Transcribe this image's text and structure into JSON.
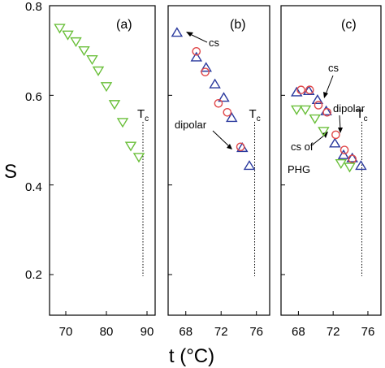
{
  "chart_data": [
    {
      "type": "scatter",
      "panel_label": "(a)",
      "xlim": [
        66,
        92
      ],
      "ylim": [
        0.2,
        0.8
      ],
      "xticks": [
        "70",
        "80",
        "90"
      ],
      "xtick_values": [
        70,
        80,
        90
      ],
      "series": [
        {
          "marker": "triangle-down",
          "color": "#6abf3a",
          "x": [
            68.5,
            70.5,
            72.5,
            74.5,
            76.5,
            78,
            80,
            82,
            84,
            86,
            88
          ],
          "y": [
            0.75,
            0.735,
            0.72,
            0.7,
            0.68,
            0.655,
            0.62,
            0.58,
            0.54,
            0.487,
            0.462
          ]
        }
      ],
      "tc": {
        "x": 89,
        "label": "T",
        "sub": "c"
      }
    },
    {
      "type": "scatter",
      "panel_label": "(b)",
      "xlim": [
        66,
        77.5
      ],
      "ylim": [
        0.2,
        0.8
      ],
      "xticks": [
        "68",
        "72",
        "76"
      ],
      "xtick_values": [
        68,
        72,
        76
      ],
      "series": [
        {
          "marker": "triangle-up",
          "color": "#2b3a9e",
          "x": [
            67,
            69.2,
            70.3,
            71.3,
            72.3,
            73.2,
            74.4,
            75.2
          ],
          "y": [
            0.74,
            0.685,
            0.662,
            0.625,
            0.595,
            0.55,
            0.483,
            0.443
          ]
        },
        {
          "marker": "circle",
          "color": "#e0484a",
          "x": [
            69.2,
            70.2,
            71.7,
            72.7,
            74.2
          ],
          "y": [
            0.698,
            0.652,
            0.582,
            0.562,
            0.485
          ]
        }
      ],
      "tc": {
        "x": 75.8,
        "label": "T",
        "sub": "c"
      },
      "annotations": [
        "cs",
        "dipolar"
      ]
    },
    {
      "type": "scatter",
      "panel_label": "(c)",
      "xlim": [
        66,
        77.5
      ],
      "ylim": [
        0.2,
        0.8
      ],
      "xticks": [
        "68",
        "72",
        "76"
      ],
      "xtick_values": [
        68,
        72,
        76
      ],
      "series": [
        {
          "marker": "triangle-up",
          "color": "#2b3a9e",
          "x": [
            67.8,
            69.2,
            70.2,
            71.2,
            72.2,
            73.2,
            74.2,
            75.2
          ],
          "y": [
            0.607,
            0.61,
            0.59,
            0.565,
            0.493,
            0.467,
            0.46,
            0.443
          ]
        },
        {
          "marker": "circle",
          "color": "#e0484a",
          "x": [
            68.3,
            69.3,
            70.3,
            71.3,
            72.3,
            73.3,
            74.2
          ],
          "y": [
            0.612,
            0.612,
            0.578,
            0.562,
            0.512,
            0.478,
            0.458
          ]
        },
        {
          "marker": "triangle-down",
          "color": "#6abf3a",
          "x": [
            67.8,
            68.8,
            69.9,
            70.9,
            72.9,
            73.9
          ],
          "y": [
            0.568,
            0.568,
            0.548,
            0.52,
            0.448,
            0.44
          ]
        }
      ],
      "tc": {
        "x": 75.3,
        "label": "T",
        "sub": "c"
      },
      "annotations": [
        "cs",
        "dipolar",
        "cs of PHG"
      ]
    }
  ],
  "axes": {
    "ylabel": "S",
    "xlabel": "t (°C)",
    "yticks": [
      "0.2",
      "0.4",
      "0.6",
      "0.8"
    ]
  },
  "labels": {
    "cs": "cs",
    "dipolar": "dipolar",
    "cs_of": "cs of",
    "phg": "PHG"
  }
}
